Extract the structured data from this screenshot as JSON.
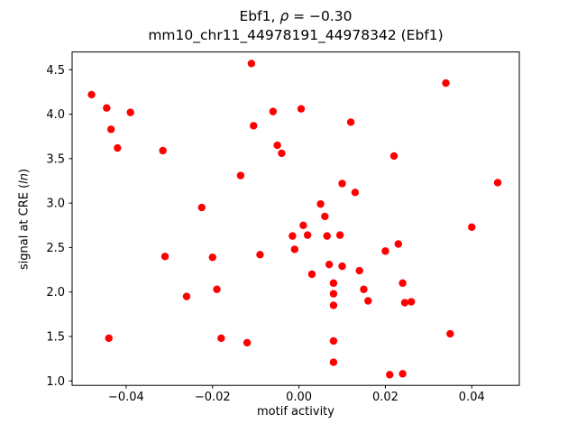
{
  "chart": {
    "title_pre": "Ebf1, ",
    "title_rho": "ρ",
    "title_post": " = −0.30",
    "subtitle": "mm10_chr11_44978191_44978342 (Ebf1)",
    "xlabel": "motif activity",
    "ylabel_pre": "signal at CRE (",
    "ylabel_italic": "ln",
    "ylabel_post": ")"
  },
  "chart_data": {
    "type": "scatter",
    "title": "Ebf1, ρ = −0.30",
    "subtitle": "mm10_chr11_44978191_44978342 (Ebf1)",
    "xlabel": "motif activity",
    "ylabel": "signal at CRE (ln)",
    "marker_color": "#ff0000",
    "marker_shape": "circle",
    "grid": false,
    "legend": "none",
    "xlim": [
      -0.0525,
      0.051
    ],
    "ylim": [
      0.95,
      4.7
    ],
    "xticks": [
      -0.04,
      -0.02,
      0.0,
      0.02,
      0.04
    ],
    "yticks": [
      1.0,
      1.5,
      2.0,
      2.5,
      3.0,
      3.5,
      4.0,
      4.5
    ],
    "points": [
      [
        -0.048,
        4.22
      ],
      [
        -0.0445,
        4.07
      ],
      [
        -0.044,
        1.48
      ],
      [
        -0.0435,
        3.83
      ],
      [
        -0.042,
        3.62
      ],
      [
        -0.039,
        4.02
      ],
      [
        -0.0315,
        3.59
      ],
      [
        -0.031,
        2.4
      ],
      [
        -0.026,
        1.95
      ],
      [
        -0.0225,
        2.95
      ],
      [
        -0.02,
        2.39
      ],
      [
        -0.019,
        2.03
      ],
      [
        -0.018,
        1.48
      ],
      [
        -0.0135,
        3.31
      ],
      [
        -0.012,
        1.43
      ],
      [
        -0.011,
        4.57
      ],
      [
        -0.0105,
        3.87
      ],
      [
        -0.009,
        2.42
      ],
      [
        -0.006,
        4.03
      ],
      [
        -0.005,
        3.65
      ],
      [
        -0.004,
        3.56
      ],
      [
        -0.0015,
        2.63
      ],
      [
        -0.001,
        2.48
      ],
      [
        0.0005,
        4.06
      ],
      [
        0.001,
        2.75
      ],
      [
        0.002,
        2.64
      ],
      [
        0.003,
        2.2
      ],
      [
        0.005,
        2.99
      ],
      [
        0.006,
        2.85
      ],
      [
        0.0065,
        2.63
      ],
      [
        0.007,
        2.31
      ],
      [
        0.008,
        2.1
      ],
      [
        0.008,
        1.98
      ],
      [
        0.008,
        1.85
      ],
      [
        0.008,
        1.45
      ],
      [
        0.008,
        1.21
      ],
      [
        0.0095,
        2.64
      ],
      [
        0.01,
        3.22
      ],
      [
        0.01,
        2.29
      ],
      [
        0.012,
        3.91
      ],
      [
        0.013,
        3.12
      ],
      [
        0.014,
        2.24
      ],
      [
        0.015,
        2.03
      ],
      [
        0.016,
        1.9
      ],
      [
        0.02,
        2.46
      ],
      [
        0.021,
        1.07
      ],
      [
        0.022,
        3.53
      ],
      [
        0.023,
        2.54
      ],
      [
        0.024,
        2.1
      ],
      [
        0.0245,
        1.88
      ],
      [
        0.026,
        1.89
      ],
      [
        0.024,
        1.08
      ],
      [
        0.034,
        4.35
      ],
      [
        0.035,
        1.53
      ],
      [
        0.04,
        2.73
      ],
      [
        0.046,
        3.23
      ]
    ]
  }
}
